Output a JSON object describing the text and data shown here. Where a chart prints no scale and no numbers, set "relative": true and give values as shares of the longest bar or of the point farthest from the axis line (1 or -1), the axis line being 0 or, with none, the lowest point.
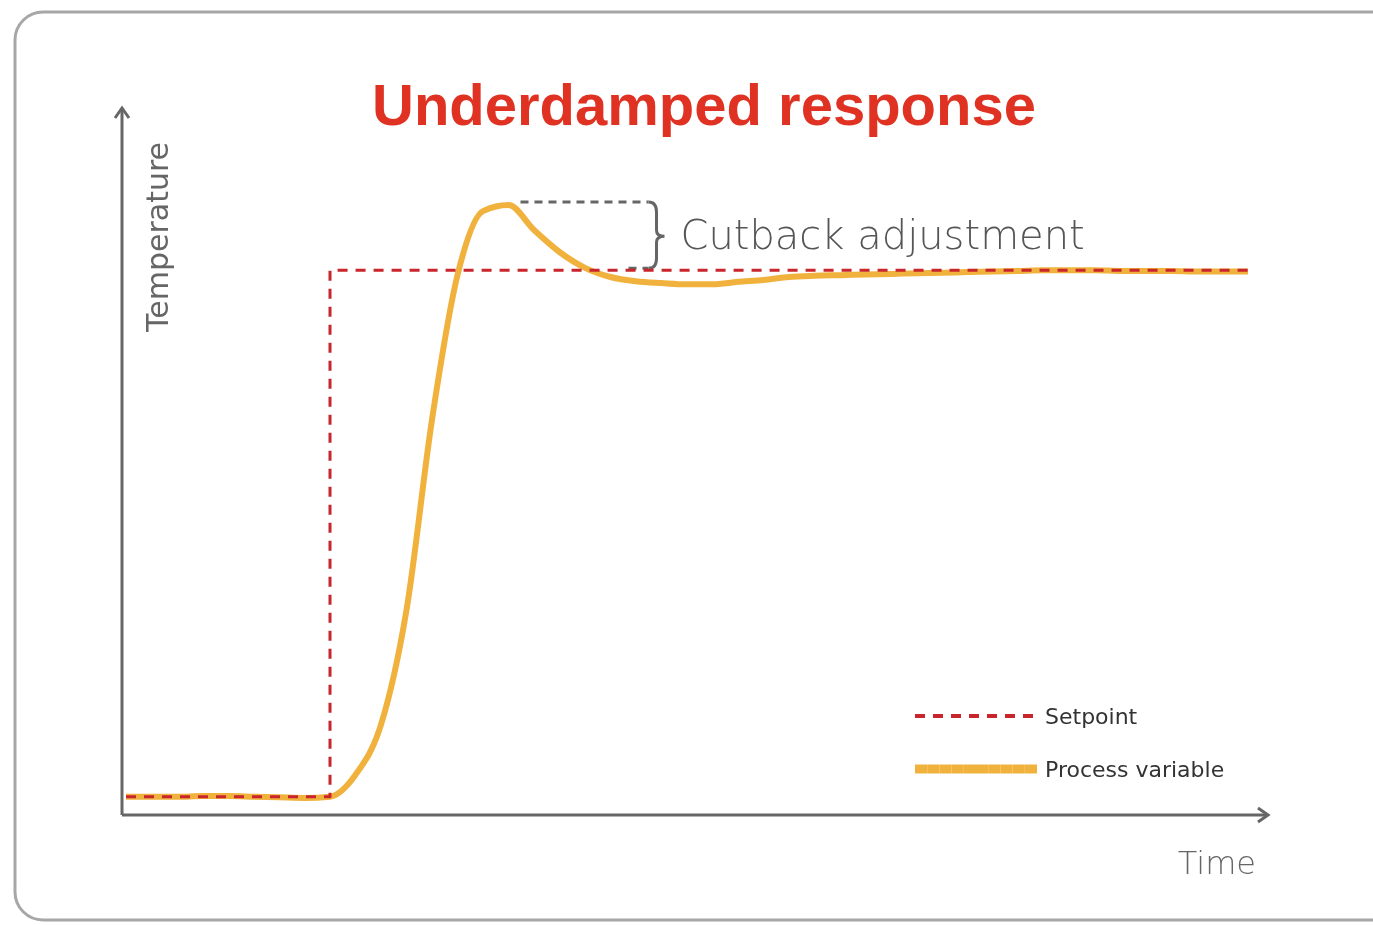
{
  "chart_data": {
    "type": "line",
    "title": "Underdamped response",
    "xlabel": "Time",
    "ylabel": "Temperature",
    "relative": true,
    "legend": "bottom right",
    "annotations": [
      "Cutback adjustment"
    ],
    "categories": [
      null,
      null,
      null,
      null,
      null,
      null,
      null,
      null,
      null,
      null,
      null,
      null,
      null,
      null,
      null,
      null,
      null,
      null,
      null,
      null,
      null,
      null,
      null,
      null,
      null,
      null,
      null,
      null,
      null,
      null,
      null,
      null,
      null,
      null,
      null,
      null,
      null,
      null,
      null,
      null,
      null,
      null,
      null,
      null,
      null
    ],
    "series": [
      {
        "name": "Setpoint",
        "type": "step",
        "color": "#c9252c",
        "line_style": "dashed",
        "values": [
          0.03,
          0.03,
          0.03,
          0.03,
          0.03,
          0.03,
          0.03,
          0.03,
          0.893,
          0.893,
          0.893,
          0.893,
          0.893,
          0.893,
          0.893,
          0.893,
          0.893,
          0.893,
          0.893,
          0.893,
          0.893,
          0.893,
          0.893,
          0.893,
          0.893,
          0.893,
          0.893,
          0.893,
          0.893,
          0.893,
          0.893,
          0.893,
          0.893,
          0.893,
          0.893,
          0.893,
          0.893,
          0.893,
          0.893,
          0.893,
          0.893,
          0.893,
          0.893,
          0.893,
          0.893
        ]
      },
      {
        "name": "Process variable",
        "color": "#f0b23c",
        "line_style": "solid",
        "values": [
          0.03,
          0.03,
          0.03,
          0.031,
          0.031,
          0.03,
          0.029,
          0.028,
          0.03,
          0.066,
          0.148,
          0.336,
          0.648,
          0.885,
          0.99,
          1,
          0.959,
          0.923,
          0.897,
          0.882,
          0.875,
          0.872,
          0.87,
          0.87,
          0.874,
          0.877,
          0.882,
          0.884,
          0.885,
          0.886,
          0.887,
          0.888,
          0.889,
          0.89,
          0.891,
          0.892,
          0.893,
          0.893,
          0.893,
          0.892,
          0.892,
          0.892,
          0.891,
          0.891,
          0.891
        ]
      }
    ]
  }
}
